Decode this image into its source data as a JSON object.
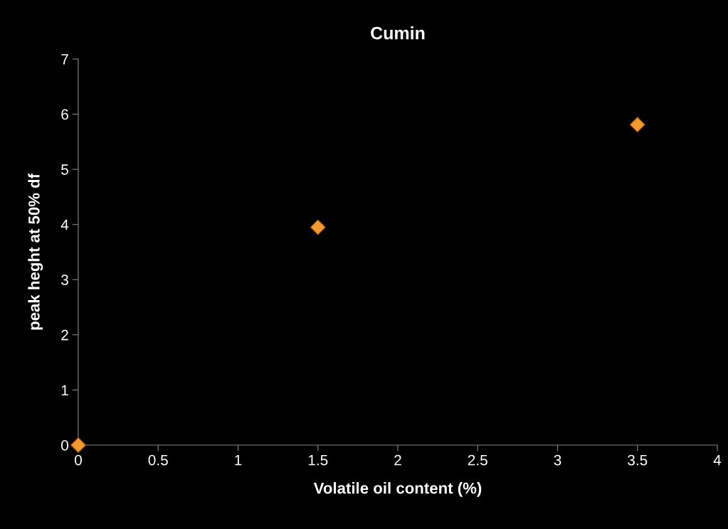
{
  "chart_data": {
    "type": "scatter",
    "title": "Cumin",
    "xlabel": "Volatile oil content (%)",
    "ylabel": "peak heght at 50% df",
    "x": [
      0,
      1.5,
      3.5
    ],
    "series": [
      {
        "color": "#f39a2e",
        "values": [
          0,
          3.95,
          5.81
        ]
      }
    ],
    "xlim": [
      0,
      4
    ],
    "xticks": [
      0,
      0.5,
      1,
      1.5,
      2,
      2.5,
      3,
      3.5,
      4
    ],
    "ylim": [
      0,
      7
    ],
    "yticks": [
      0,
      1,
      2,
      3,
      4,
      5,
      6,
      7
    ],
    "grid": false,
    "legend": false,
    "marker": "diamond"
  }
}
